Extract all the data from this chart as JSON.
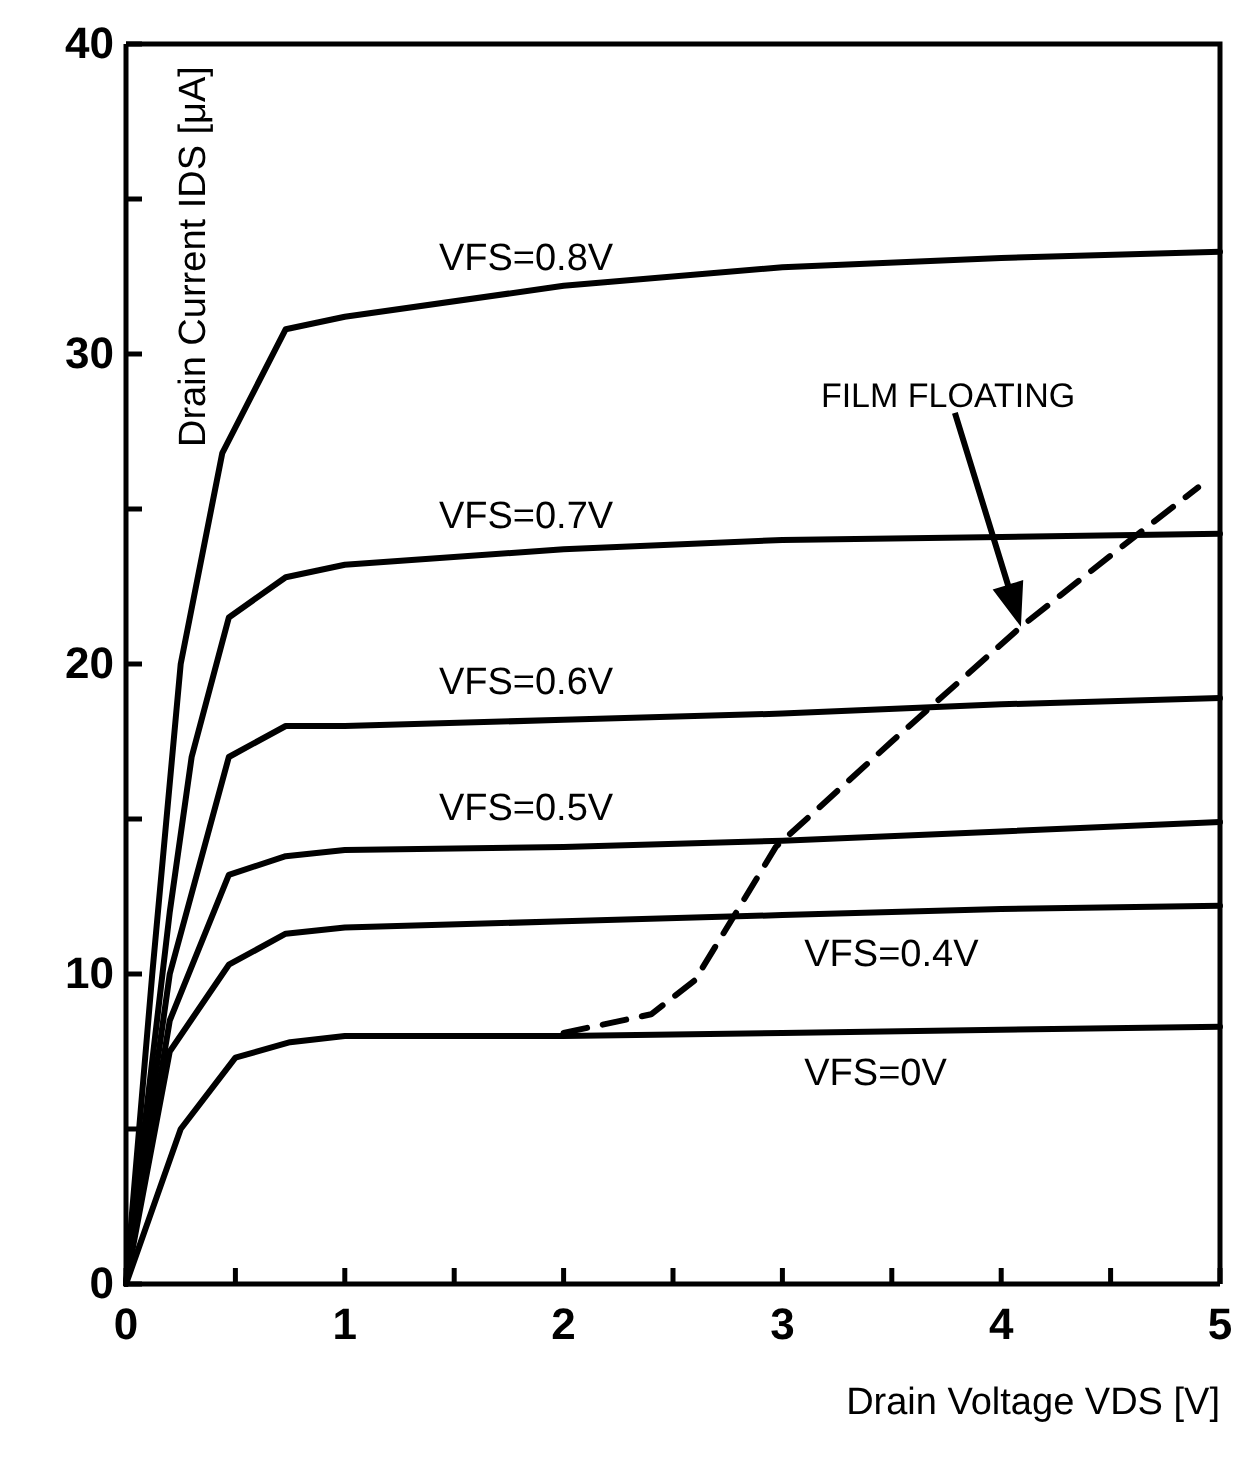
{
  "chart_data": {
    "type": "line",
    "xlabel": "Drain Voltage VDS [V]",
    "ylabel": "Drain Current IDS [μA]",
    "xlim": [
      0,
      5
    ],
    "ylim": [
      0,
      40
    ],
    "xticks": [
      0,
      {
        "value": 0.5,
        "label": null
      },
      1,
      {
        "value": 1.5,
        "label": null
      },
      2,
      {
        "value": 2.5,
        "label": null
      },
      3,
      {
        "value": 3.5,
        "label": null
      },
      4,
      {
        "value": 4.5,
        "label": null
      },
      5
    ],
    "yticks": [
      0,
      {
        "value": 5,
        "label": null
      },
      10,
      {
        "value": 15,
        "label": null
      },
      20,
      {
        "value": 25,
        "label": null
      },
      30,
      {
        "value": 35,
        "label": null
      },
      40
    ],
    "grid": false,
    "legend": false,
    "marker": "none",
    "series": [
      {
        "name": "VFS=0.8V",
        "color": "#000000",
        "x": [
          0,
          0.12,
          0.25,
          0.44,
          0.73,
          1,
          2,
          3,
          4,
          5
        ],
        "values": [
          0,
          10,
          20,
          26.8,
          30.8,
          31.2,
          32.2,
          32.8,
          33.1,
          33.3
        ]
      },
      {
        "name": "VFS=0.7V",
        "color": "#000000",
        "x": [
          0,
          0.2,
          0.3,
          0.47,
          0.73,
          1,
          2,
          3,
          4,
          5
        ],
        "values": [
          0,
          12,
          17,
          21.5,
          22.8,
          23.2,
          23.7,
          24,
          24.1,
          24.2
        ]
      },
      {
        "name": "VFS=0.6V",
        "color": "#000000",
        "x": [
          0,
          0.2,
          0.47,
          0.73,
          1,
          2,
          3,
          4,
          5
        ],
        "values": [
          0,
          10,
          17,
          18,
          18,
          18.2,
          18.4,
          18.7,
          18.9
        ]
      },
      {
        "name": "VFS=0.5V",
        "color": "#000000",
        "x": [
          0,
          0.2,
          0.47,
          0.73,
          1,
          2,
          3,
          4,
          5
        ],
        "values": [
          0,
          8.5,
          13.2,
          13.8,
          14,
          14.1,
          14.3,
          14.6,
          14.9
        ]
      },
      {
        "name": "VFS=0.4V",
        "color": "#000000",
        "x": [
          0,
          0.2,
          0.47,
          0.73,
          1,
          2,
          3,
          4,
          5
        ],
        "values": [
          0,
          7.5,
          10.3,
          11.3,
          11.5,
          11.7,
          11.9,
          12.1,
          12.2
        ]
      },
      {
        "name": "VFS=0V",
        "color": "#000000",
        "x": [
          0,
          0.25,
          0.5,
          0.75,
          1,
          2,
          3,
          4,
          5
        ],
        "values": [
          0,
          5,
          7.3,
          7.8,
          8,
          8,
          8.1,
          8.2,
          8.3
        ]
      },
      {
        "color": "#000000",
        "line_style": "dashed",
        "x": [
          2,
          2.4,
          2.6,
          2.79,
          2.97,
          3.5,
          4.09,
          4.5,
          4.9
        ],
        "values": [
          8.1,
          8.7,
          9.8,
          12,
          14.1,
          17.5,
          21.2,
          23.5,
          25.7
        ]
      }
    ],
    "annotations": [
      "FILM FLOATING"
    ]
  }
}
